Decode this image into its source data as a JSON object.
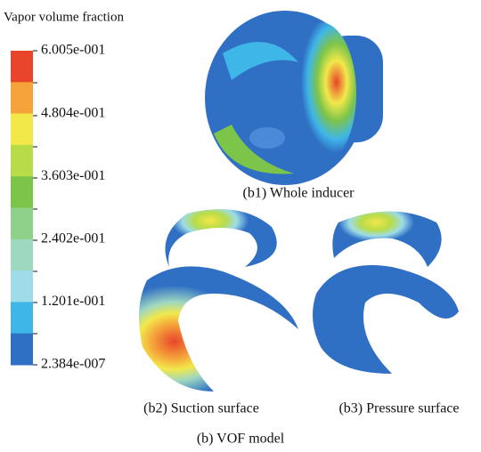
{
  "legend": {
    "title": "Vapor volume fraction",
    "labels": [
      "6.005e-001",
      "4.804e-001",
      "3.603e-001",
      "2.402e-001",
      "1.201e-001",
      "2.384e-007"
    ],
    "colors": [
      "#e8452a",
      "#f5a33a",
      "#f2e84a",
      "#b8dc48",
      "#7cc44a",
      "#8fd08a",
      "#9fd8c0",
      "#9ddce8",
      "#3fb6e8",
      "#2f6fc4"
    ]
  },
  "figures": [
    {
      "caption": "(b1) Whole inducer"
    },
    {
      "caption": "(b2) Suction surface"
    },
    {
      "caption": "(b3) Pressure surface"
    }
  ],
  "caption": "(b) VOF model"
}
